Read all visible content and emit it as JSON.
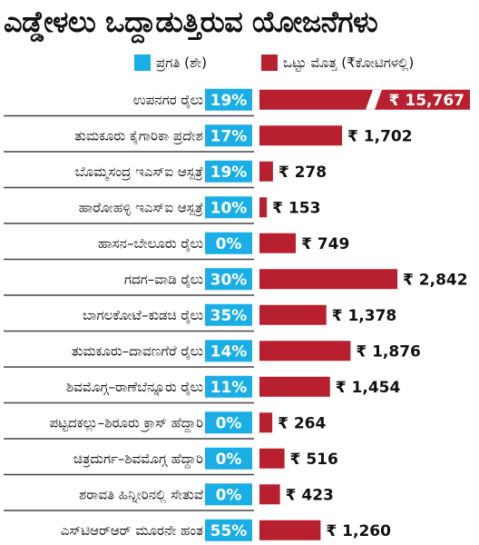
{
  "title": "ಎಡ್ಡೇಳಲು ಒದ್ದಾಡುತ್ತಿರುವ ಯೋಜನೆಗಳು",
  "legend": {
    "progress_label": "ಪ್ರಗತಿ (ಶೇ)",
    "cost_label": "ಒಟ್ಟು ಮೊತ್ತ (₹ಕೋಟಿಗಳಲ್ಲಿ)"
  },
  "colors": {
    "progress": "#1aaee6",
    "cost": "#b8202f",
    "separator": "#444444"
  },
  "chart_data": {
    "type": "bar",
    "categories": [
      "ಉಪನಗರ ರೈಲು",
      "ತುಮಕೂರು ಕೈಗಾರಿಕಾ ಪ್ರದೇಶ",
      "ಬೊಮ್ಮಸಂದ್ರ ಇಎಸ್‌ಐ ಆಸ್ಪತ್ರೆ",
      "ಹಾರೋಹಳ್ಳಿ ಇಎಸ್‌ಐ ಆಸ್ಪತ್ರೆ",
      "ಹಾಸನ–ಬೇಲೂರು ರೈಲು",
      "ಗದಗ–ವಾಡಿ ರೈಲು",
      "ಬಾಗಲಕೋಟೆ–ಕುಡಚಿ ರೈಲು",
      "ತುಮಕೂರು–ದಾವಣಗೆರೆ ರೈಲು",
      "ಶಿವಮೊಗ್ಗ–ರಾಣೆಬೆನ್ನೂರು ರೈಲು",
      "ಪಟ್ಟದಕಲ್ಲು–ಶಿರೂರು ಕ್ರಾಸ್ ಹೆದ್ದಾರಿ",
      "ಚಿತ್ರದುರ್ಗ–ಶಿವಮೊಗ್ಗ ಹೆದ್ದಾರಿ",
      "ಶರಾವತಿ ಹಿನ್ನೀರಿನಲ್ಲಿ ಸೇತುವೆ",
      "ಎಸ್‌ಟಿಆರ್‌ಆರ್ ಮೂರನೇ ಹಂತ"
    ],
    "progress_percent": [
      19,
      17,
      19,
      10,
      0,
      30,
      35,
      14,
      11,
      0,
      0,
      0,
      55
    ],
    "progress_labels": [
      "19%",
      "17%",
      "19%",
      "10%",
      "0%",
      "30%",
      "35%",
      "14%",
      "11%",
      "0%",
      "0%",
      "0%",
      "55%"
    ],
    "cost_crore": [
      15767,
      1702,
      278,
      153,
      749,
      2842,
      1378,
      1876,
      1454,
      264,
      516,
      423,
      1260
    ],
    "cost_labels": [
      "₹ 15,767",
      "₹ 1,702",
      "₹ 278",
      "₹ 153",
      "₹ 749",
      "₹ 2,842",
      "₹ 1,378",
      "₹ 1,876",
      "₹ 1,454",
      "₹ 264",
      "₹ 516",
      "₹ 423",
      "₹ 1,260"
    ],
    "axis_break": "ಉಪನಗರ ರೈಲು",
    "legend_placement": "top",
    "grid": false
  }
}
